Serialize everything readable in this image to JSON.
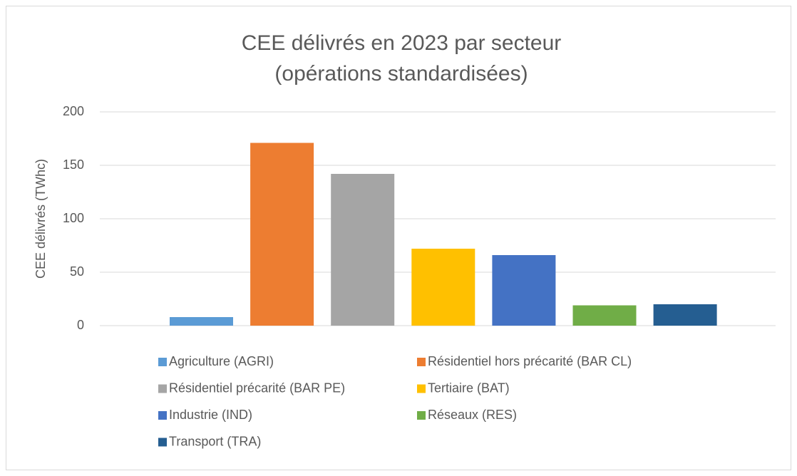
{
  "chart_data": {
    "type": "bar",
    "title": [
      "CEE délivrés en 2023 par secteur",
      "(opérations standardisées)"
    ],
    "y_label": "CEE délivrés (TWhc)",
    "series": [
      {
        "name": "Agriculture (AGRI)",
        "color": "#5b9bd5",
        "values": [
          8
        ]
      },
      {
        "name": "Résidentiel hors précarité (BAR CL)",
        "color": "#ed7d31",
        "values": [
          171
        ]
      },
      {
        "name": "Résidentiel précarité (BAR PE)",
        "color": "#a5a5a5",
        "values": [
          142
        ]
      },
      {
        "name": "Tertiaire (BAT)",
        "color": "#ffc000",
        "values": [
          72
        ]
      },
      {
        "name": "Industrie (IND)",
        "color": "#4472c4",
        "values": [
          66
        ]
      },
      {
        "name": "Réseaux (RES)",
        "color": "#70ad47",
        "values": [
          19
        ]
      },
      {
        "name": "Transport (TRA)",
        "color": "#255e91",
        "values": [
          20
        ]
      }
    ],
    "ylim": [
      0,
      200
    ],
    "yticks": [
      0,
      50,
      100,
      150,
      200
    ],
    "grid": true,
    "legend": "bottom"
  }
}
